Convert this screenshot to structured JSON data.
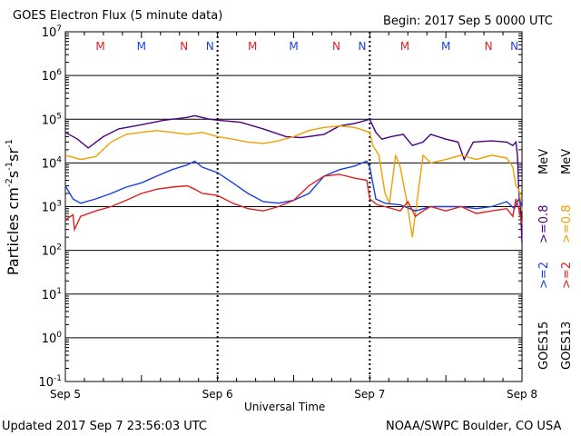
{
  "header": {
    "title": "GOES Electron Flux (5 minute data)",
    "begin": "Begin: 2017 Sep 5 0000 UTC"
  },
  "footer": {
    "updated": "Updated 2017 Sep  7 23:56:03 UTC",
    "credit": "NOAA/SWPC Boulder, CO USA"
  },
  "axes": {
    "x_label": "Universal Time",
    "y_label_parts": [
      "Particles cm",
      "-2",
      "s",
      "-1",
      "sr",
      "-1"
    ],
    "x_ticks": [
      "Sep 5",
      "Sep 6",
      "Sep 7",
      "Sep 8"
    ],
    "y_ticks": [
      {
        "base": "10",
        "exp": "7"
      },
      {
        "base": "10",
        "exp": "6"
      },
      {
        "base": "10",
        "exp": "5"
      },
      {
        "base": "10",
        "exp": "4"
      },
      {
        "base": "10",
        "exp": "3"
      },
      {
        "base": "10",
        "exp": "2"
      },
      {
        "base": "10",
        "exp": "1"
      },
      {
        "base": "10",
        "exp": "0"
      },
      {
        "base": "10",
        "exp": "-1"
      }
    ]
  },
  "legend": {
    "goes15": {
      "sat": "GOES15",
      "low": ">=2",
      "high": ">=0.8",
      "unit": "MeV"
    },
    "goes13": {
      "sat": "GOES13",
      "low": ">=2",
      "high": ">=0.8",
      "unit": "MeV"
    }
  },
  "colors": {
    "goes15_high": "#4b0082",
    "goes15_low": "#1a3fe0",
    "goes13_high": "#f0a000",
    "goes13_low": "#e02020",
    "midnight_marker": "#e02020",
    "noon_marker": "#1a3fe0"
  },
  "markers": [
    {
      "label": "M",
      "x": 0.23,
      "kind": "midnight"
    },
    {
      "label": "M",
      "x": 0.5,
      "kind": "noon"
    },
    {
      "label": "N",
      "x": 0.78,
      "kind": "midnight"
    },
    {
      "label": "N",
      "x": 0.95,
      "kind": "noon"
    },
    {
      "label": "M",
      "x": 1.23,
      "kind": "midnight"
    },
    {
      "label": "M",
      "x": 1.5,
      "kind": "noon"
    },
    {
      "label": "N",
      "x": 1.78,
      "kind": "midnight"
    },
    {
      "label": "N",
      "x": 1.95,
      "kind": "noon"
    },
    {
      "label": "M",
      "x": 2.23,
      "kind": "midnight"
    },
    {
      "label": "M",
      "x": 2.5,
      "kind": "noon"
    },
    {
      "label": "N",
      "x": 2.78,
      "kind": "midnight"
    },
    {
      "label": "N",
      "x": 2.95,
      "kind": "noon"
    }
  ],
  "chart_data": {
    "type": "line",
    "x_unit": "days since 2017 Sep 5 0000 UTC",
    "xlim": [
      0,
      3
    ],
    "ylim_log10": [
      -1,
      7
    ],
    "y_scale": "log",
    "threshold": 1000,
    "series": [
      {
        "name": "GOES15 >=0.8 MeV",
        "color_key": "goes15_high",
        "points": [
          [
            0,
            50000
          ],
          [
            0.08,
            35000
          ],
          [
            0.15,
            22000
          ],
          [
            0.25,
            40000
          ],
          [
            0.35,
            60000
          ],
          [
            0.5,
            75000
          ],
          [
            0.65,
            95000
          ],
          [
            0.8,
            110000
          ],
          [
            0.85,
            120000
          ],
          [
            0.95,
            100000
          ],
          [
            1.0,
            95000
          ],
          [
            1.15,
            85000
          ],
          [
            1.3,
            60000
          ],
          [
            1.45,
            40000
          ],
          [
            1.55,
            38000
          ],
          [
            1.7,
            45000
          ],
          [
            1.8,
            70000
          ],
          [
            1.9,
            80000
          ],
          [
            2.0,
            100000
          ],
          [
            2.04,
            50000
          ],
          [
            2.08,
            35000
          ],
          [
            2.14,
            40000
          ],
          [
            2.22,
            45000
          ],
          [
            2.28,
            25000
          ],
          [
            2.35,
            30000
          ],
          [
            2.4,
            45000
          ],
          [
            2.5,
            35000
          ],
          [
            2.58,
            30000
          ],
          [
            2.62,
            12000
          ],
          [
            2.68,
            30000
          ],
          [
            2.8,
            32000
          ],
          [
            2.9,
            30000
          ],
          [
            2.94,
            25000
          ],
          [
            2.96,
            30000
          ],
          [
            2.97,
            15000
          ],
          [
            2.98,
            2000
          ],
          [
            2.99,
            1000
          ],
          [
            3.0,
            150
          ]
        ]
      },
      {
        "name": "GOES13 >=0.8 MeV",
        "color_key": "goes13_high",
        "points": [
          [
            0,
            15000
          ],
          [
            0.1,
            12000
          ],
          [
            0.2,
            14000
          ],
          [
            0.3,
            30000
          ],
          [
            0.4,
            45000
          ],
          [
            0.5,
            50000
          ],
          [
            0.6,
            55000
          ],
          [
            0.7,
            50000
          ],
          [
            0.8,
            45000
          ],
          [
            0.9,
            50000
          ],
          [
            1.0,
            40000
          ],
          [
            1.1,
            35000
          ],
          [
            1.2,
            30000
          ],
          [
            1.3,
            28000
          ],
          [
            1.4,
            32000
          ],
          [
            1.5,
            40000
          ],
          [
            1.6,
            55000
          ],
          [
            1.7,
            65000
          ],
          [
            1.8,
            70000
          ],
          [
            1.9,
            65000
          ],
          [
            2.0,
            50000
          ],
          [
            2.02,
            25000
          ],
          [
            2.06,
            15000
          ],
          [
            2.1,
            2000
          ],
          [
            2.13,
            1200
          ],
          [
            2.17,
            15000
          ],
          [
            2.2,
            8000
          ],
          [
            2.24,
            1500
          ],
          [
            2.28,
            200
          ],
          [
            2.3,
            700
          ],
          [
            2.35,
            15000
          ],
          [
            2.4,
            10000
          ],
          [
            2.5,
            12000
          ],
          [
            2.6,
            15000
          ],
          [
            2.7,
            12000
          ],
          [
            2.8,
            15000
          ],
          [
            2.9,
            13000
          ],
          [
            2.94,
            8000
          ],
          [
            2.96,
            3000
          ],
          [
            2.98,
            2500
          ],
          [
            3.0,
            800
          ]
        ]
      },
      {
        "name": "GOES15 >=2 MeV",
        "color_key": "goes15_low",
        "points": [
          [
            0,
            3000
          ],
          [
            0.05,
            1500
          ],
          [
            0.1,
            1200
          ],
          [
            0.2,
            1500
          ],
          [
            0.3,
            2000
          ],
          [
            0.4,
            2800
          ],
          [
            0.5,
            3500
          ],
          [
            0.6,
            5000
          ],
          [
            0.7,
            7000
          ],
          [
            0.8,
            9000
          ],
          [
            0.85,
            11000
          ],
          [
            0.9,
            8000
          ],
          [
            1.0,
            6000
          ],
          [
            1.1,
            3500
          ],
          [
            1.2,
            2000
          ],
          [
            1.3,
            1300
          ],
          [
            1.4,
            1200
          ],
          [
            1.5,
            1400
          ],
          [
            1.6,
            2000
          ],
          [
            1.7,
            5000
          ],
          [
            1.8,
            7000
          ],
          [
            1.9,
            8500
          ],
          [
            1.98,
            11000
          ],
          [
            2.0,
            8000
          ],
          [
            2.04,
            1500
          ],
          [
            2.1,
            1200
          ],
          [
            2.2,
            1100
          ],
          [
            2.3,
            800
          ],
          [
            2.4,
            1000
          ],
          [
            2.5,
            1000
          ],
          [
            2.6,
            1000
          ],
          [
            2.7,
            900
          ],
          [
            2.8,
            1000
          ],
          [
            2.9,
            1300
          ],
          [
            2.95,
            900
          ],
          [
            2.98,
            1500
          ],
          [
            3.0,
            1000
          ]
        ]
      },
      {
        "name": "GOES13 >=2 MeV",
        "color_key": "goes13_low",
        "points": [
          [
            0,
            500
          ],
          [
            0.05,
            650
          ],
          [
            0.06,
            300
          ],
          [
            0.1,
            600
          ],
          [
            0.2,
            800
          ],
          [
            0.3,
            1000
          ],
          [
            0.4,
            1400
          ],
          [
            0.5,
            2000
          ],
          [
            0.6,
            2500
          ],
          [
            0.7,
            2800
          ],
          [
            0.8,
            3000
          ],
          [
            0.85,
            2500
          ],
          [
            0.9,
            2000
          ],
          [
            1.0,
            1800
          ],
          [
            1.1,
            1200
          ],
          [
            1.2,
            900
          ],
          [
            1.3,
            800
          ],
          [
            1.4,
            1000
          ],
          [
            1.5,
            1400
          ],
          [
            1.6,
            3000
          ],
          [
            1.7,
            5000
          ],
          [
            1.8,
            5500
          ],
          [
            1.9,
            4500
          ],
          [
            1.98,
            4000
          ],
          [
            2.0,
            1500
          ],
          [
            2.05,
            1100
          ],
          [
            2.1,
            1000
          ],
          [
            2.2,
            800
          ],
          [
            2.25,
            1300
          ],
          [
            2.3,
            600
          ],
          [
            2.35,
            800
          ],
          [
            2.4,
            1000
          ],
          [
            2.5,
            800
          ],
          [
            2.6,
            1000
          ],
          [
            2.7,
            700
          ],
          [
            2.8,
            800
          ],
          [
            2.9,
            900
          ],
          [
            2.94,
            600
          ],
          [
            2.96,
            1500
          ],
          [
            2.98,
            900
          ],
          [
            3.0,
            400
          ]
        ]
      }
    ]
  }
}
